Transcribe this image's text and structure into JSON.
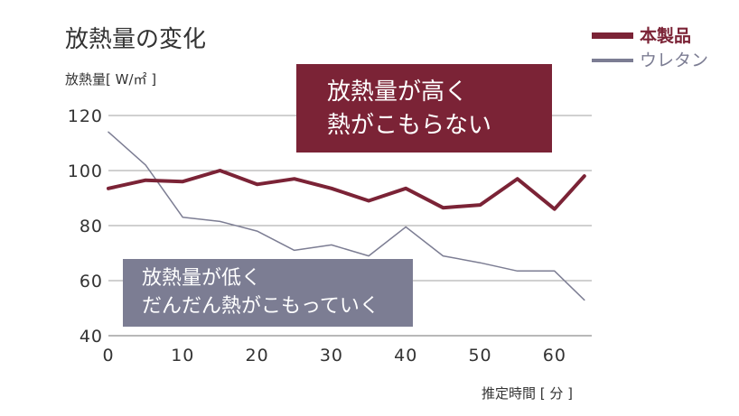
{
  "chart_data": {
    "type": "line",
    "title": "放熱量の変化",
    "ylabel": "放熱量[ W/㎡ ]",
    "xlabel": "推定時間 [ 分 ]",
    "ylim": [
      40,
      120
    ],
    "xlim": [
      0,
      65
    ],
    "yticks": [
      "40",
      "60",
      "80",
      "100",
      "120"
    ],
    "xticks": [
      "0",
      "10",
      "20",
      "30",
      "40",
      "50",
      "60"
    ],
    "series": [
      {
        "name": "本製品",
        "color": "#7b2336",
        "x": [
          0,
          5,
          10,
          15,
          20,
          25,
          30,
          35,
          40,
          45,
          50,
          55,
          60,
          64
        ],
        "y": [
          93.5,
          96.5,
          96,
          100,
          95,
          97,
          93.5,
          89,
          93.5,
          86.5,
          87.5,
          97,
          86,
          98
        ]
      },
      {
        "name": "ウレタン",
        "color": "#7c7d93",
        "x": [
          0,
          5,
          10,
          15,
          20,
          25,
          30,
          35,
          40,
          45,
          50,
          55,
          60,
          64
        ],
        "y": [
          114,
          102,
          83,
          81.5,
          78,
          71,
          73,
          69,
          79.5,
          69,
          66.5,
          63.5,
          63.5,
          53
        ]
      }
    ],
    "annotations": [
      {
        "lines": [
          "放熱量が高く",
          "熱がこもらない"
        ],
        "color": "#7b2336"
      },
      {
        "lines": [
          "放熱量が低く",
          "だんだん熱がこもっていく"
        ],
        "color": "#7c7d93"
      }
    ],
    "legend": "top-right"
  }
}
